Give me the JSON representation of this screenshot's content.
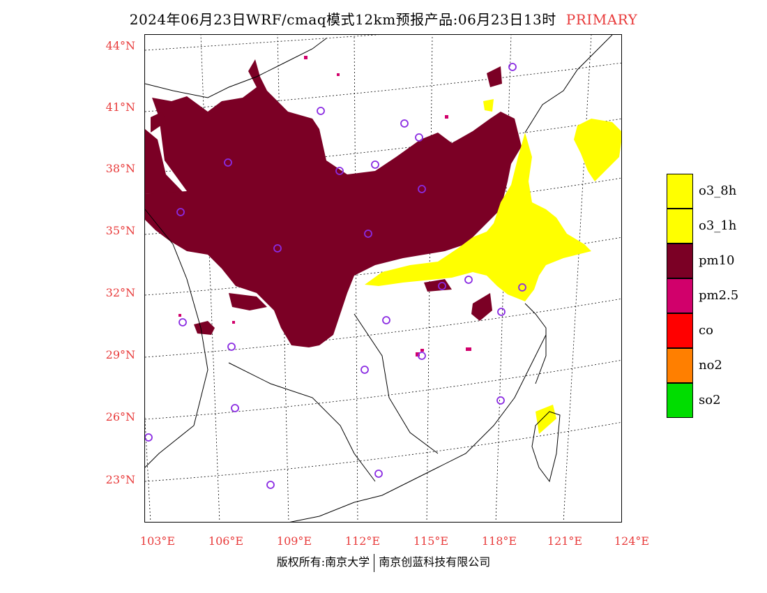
{
  "header": {
    "title": "2024年06月23日WRF/cmaq模式12km预报产品:06月23日13时",
    "tag": "PRIMARY"
  },
  "axes": {
    "lat_labels": [
      "44°N",
      "41°N",
      "38°N",
      "35°N",
      "32°N",
      "29°N",
      "26°N",
      "23°N"
    ],
    "lon_labels": [
      "103°E",
      "106°E",
      "109°E",
      "112°E",
      "115°E",
      "118°E",
      "121°E",
      "124°E"
    ]
  },
  "legend": {
    "items": [
      {
        "label": "o3_8h",
        "color": "#ffff00"
      },
      {
        "label": "o3_1h",
        "color": "#ffff00"
      },
      {
        "label": "pm10",
        "color": "#7b0025"
      },
      {
        "label": "pm2.5",
        "color": "#d1006b"
      },
      {
        "label": "co",
        "color": "#ff0000"
      },
      {
        "label": "no2",
        "color": "#ff7f00"
      },
      {
        "label": "so2",
        "color": "#00dd00"
      }
    ]
  },
  "footer": {
    "left": "版权所有:南京大学",
    "right": "南京创蓝科技有限公司"
  },
  "colors": {
    "axis_label": "#e83a3a",
    "station_marker": "#8a2be2",
    "pm10": "#7b0025",
    "o3": "#ffff00",
    "pm25": "#d1006b"
  }
}
